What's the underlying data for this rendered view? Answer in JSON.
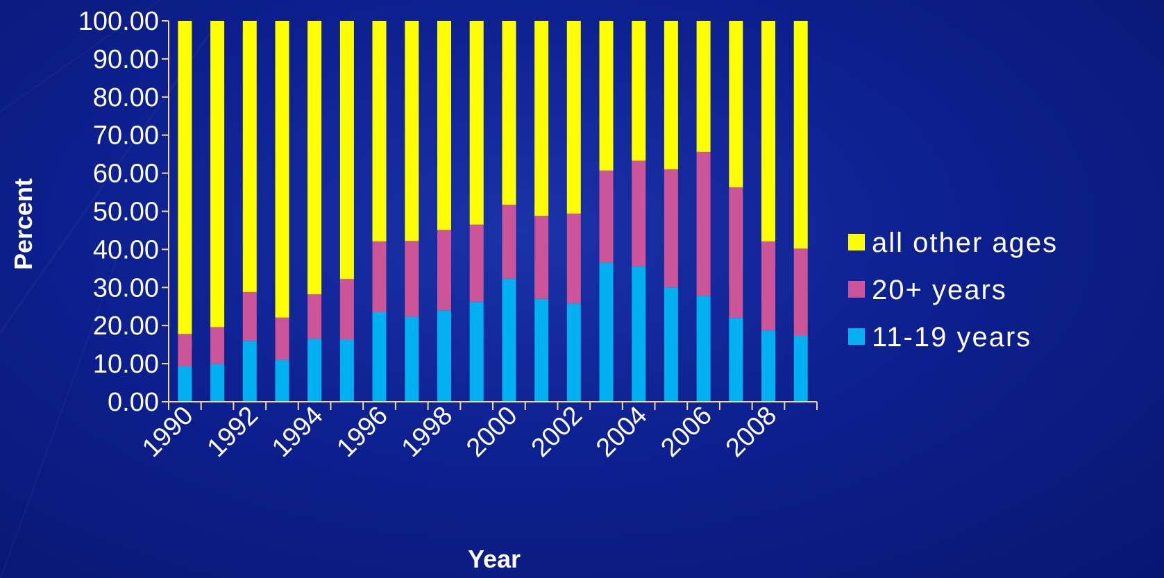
{
  "chart_data": {
    "type": "bar",
    "stacked": true,
    "xlabel": "Year",
    "ylabel": "Percent",
    "ylim": [
      0,
      100
    ],
    "yticks": [
      "0.00",
      "10.00",
      "20.00",
      "30.00",
      "40.00",
      "50.00",
      "60.00",
      "70.00",
      "80.00",
      "90.00",
      "100.00"
    ],
    "categories": [
      "1990",
      "1991",
      "1992",
      "1993",
      "1994",
      "1995",
      "1996",
      "1997",
      "1998",
      "1999",
      "2000",
      "2001",
      "2002",
      "2003",
      "2004",
      "2005",
      "2006",
      "2007",
      "2008",
      "2009"
    ],
    "x_tick_labels": [
      "1990",
      "1992",
      "1994",
      "1996",
      "1998",
      "2000",
      "2002",
      "2004",
      "2006",
      "2008"
    ],
    "series": [
      {
        "name": "11-19 years",
        "color": "#00b0f0",
        "values": [
          9.3,
          9.9,
          16.0,
          11.0,
          16.5,
          16.3,
          23.5,
          22.3,
          24.0,
          26.2,
          32.3,
          27.0,
          25.8,
          36.5,
          35.5,
          30.0,
          27.8,
          22.0,
          18.7,
          17.3
        ]
      },
      {
        "name": "20+ years",
        "color": "#cc5599",
        "values": [
          8.5,
          9.7,
          12.8,
          11.1,
          11.7,
          15.9,
          18.6,
          19.9,
          21.1,
          20.3,
          19.4,
          21.8,
          23.6,
          24.2,
          27.8,
          31.0,
          37.8,
          34.3,
          23.4,
          22.9
        ]
      },
      {
        "name": "all other ages",
        "color": "#ffff00",
        "values": [
          82.2,
          80.4,
          71.2,
          77.9,
          71.8,
          67.8,
          57.9,
          57.8,
          54.9,
          53.5,
          48.3,
          51.2,
          50.6,
          39.3,
          36.7,
          39.0,
          34.4,
          43.7,
          57.9,
          59.8
        ]
      }
    ],
    "legend": {
      "position": "right",
      "order": [
        "all other ages",
        "20+ years",
        "11-19 years"
      ]
    },
    "axis_color": "#f5d98a",
    "grid": false
  }
}
